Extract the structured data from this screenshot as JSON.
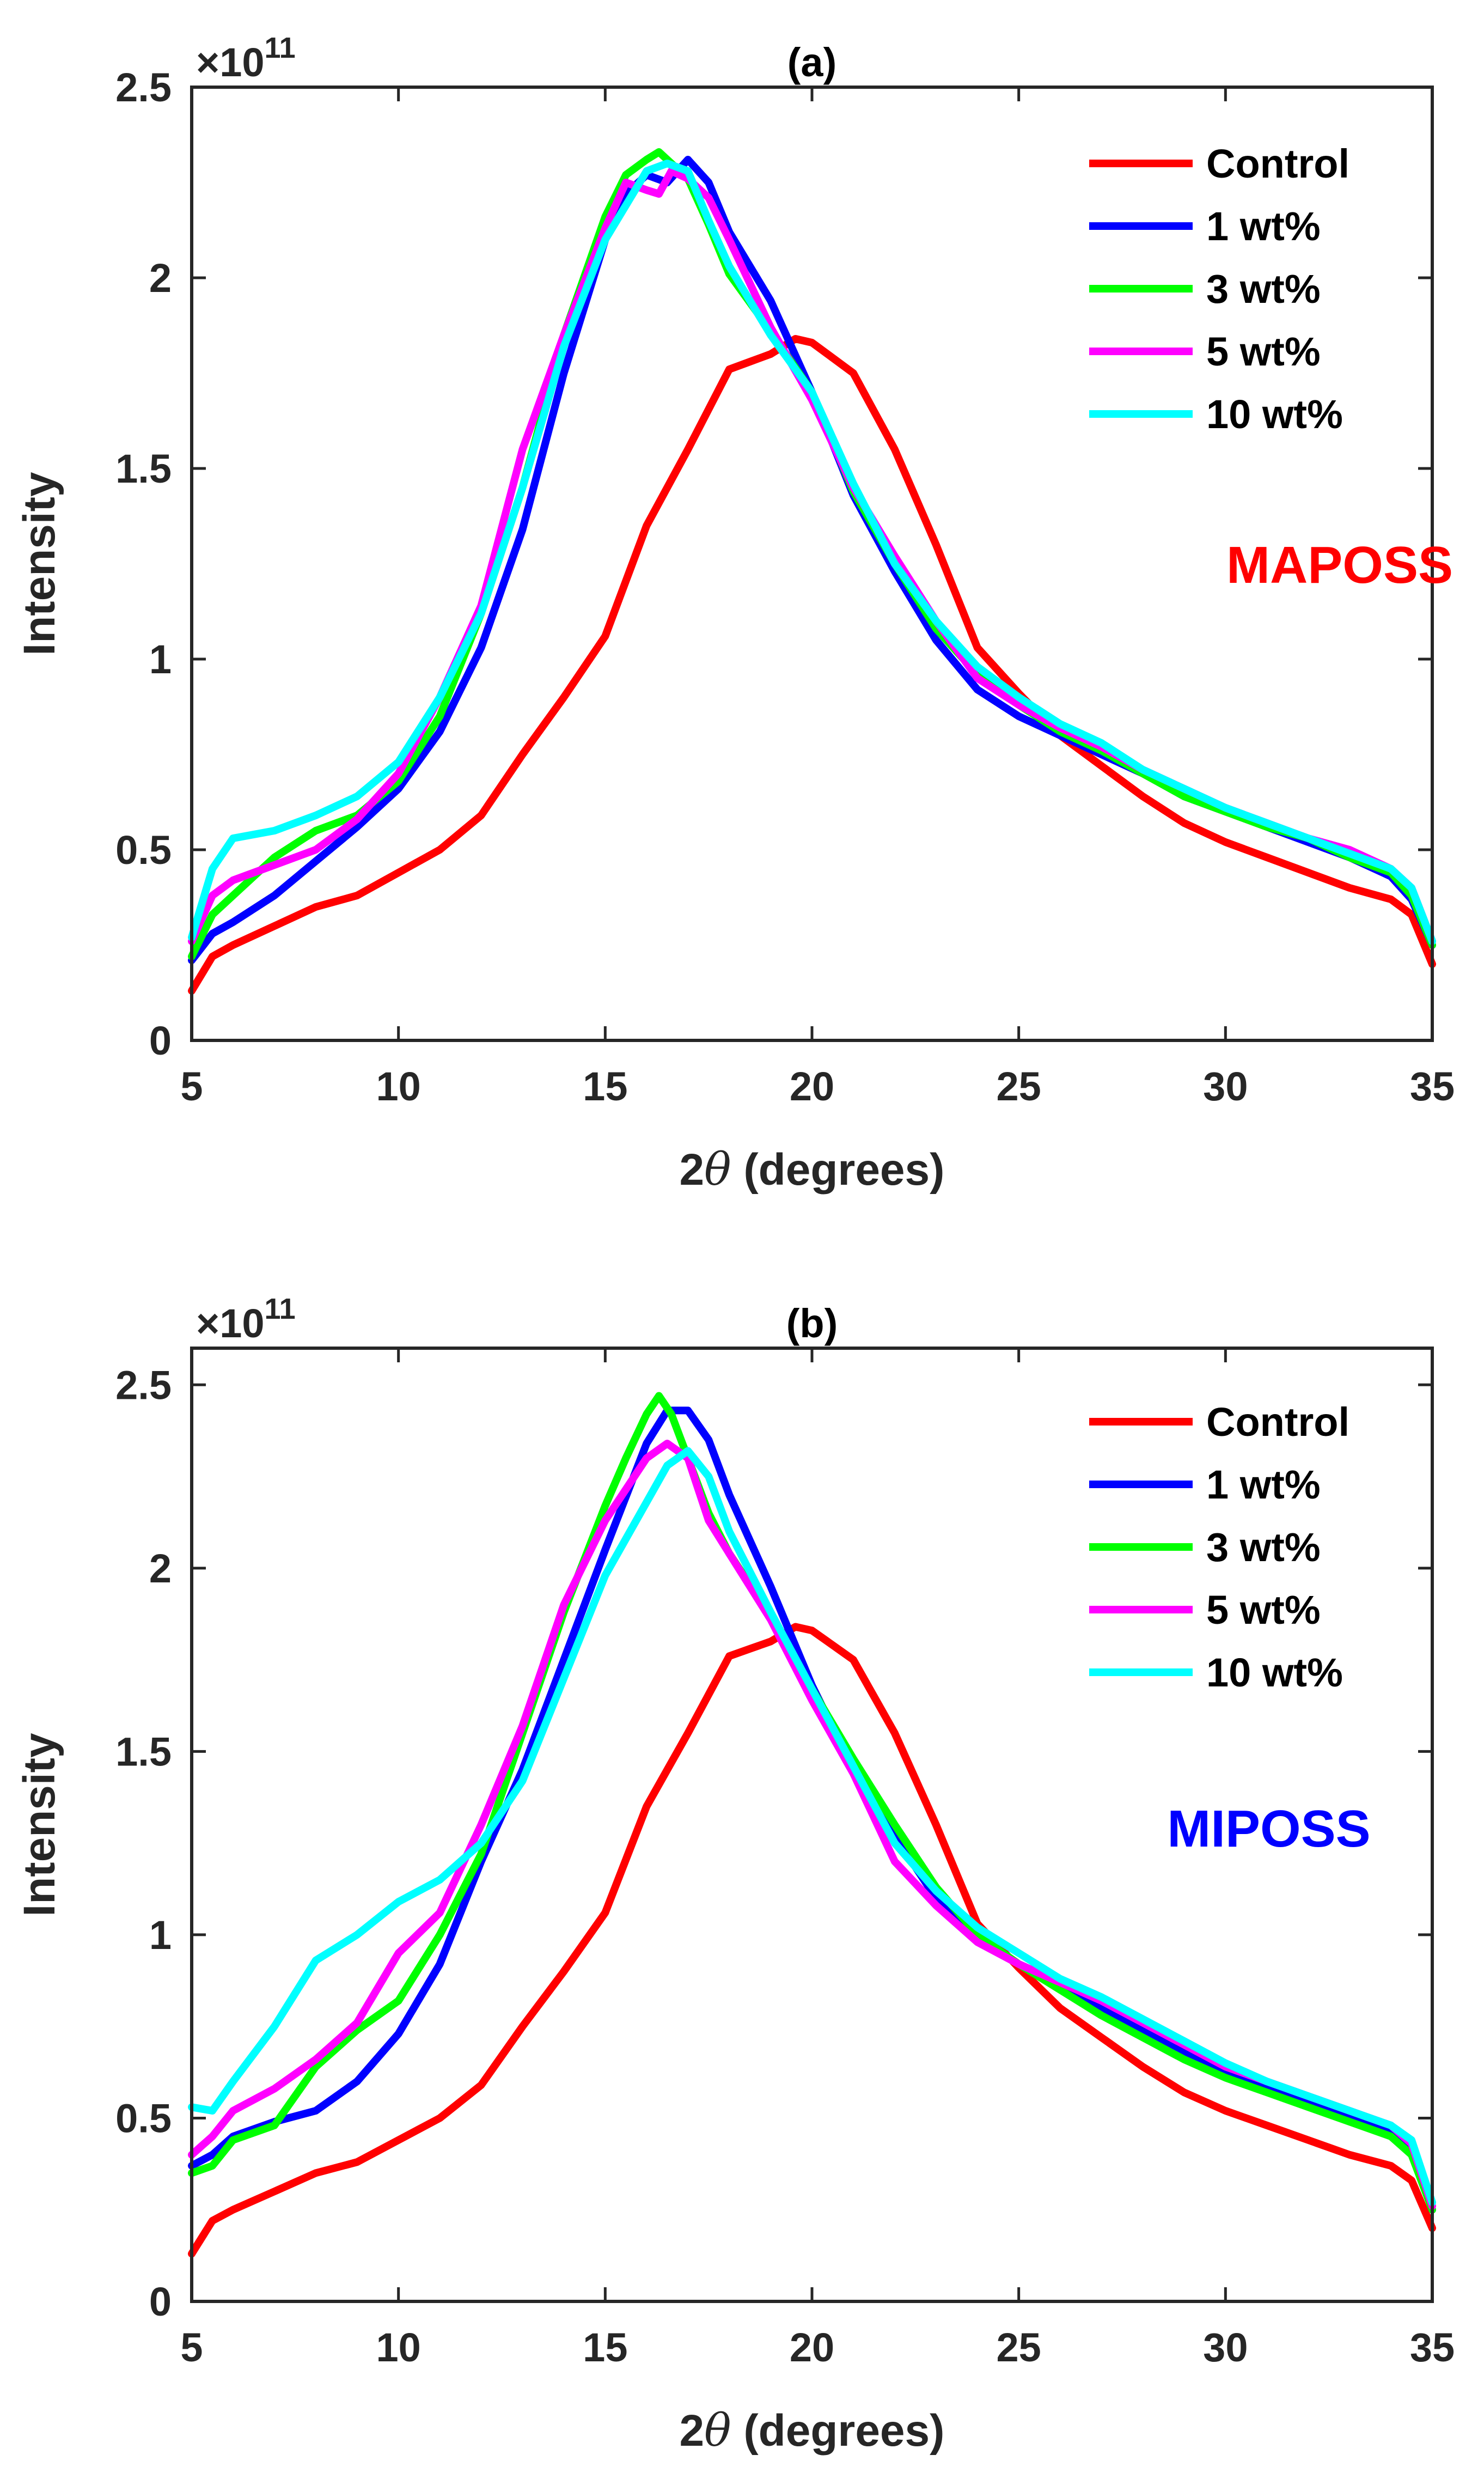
{
  "chart_data": [
    {
      "type": "line",
      "title": "(a)",
      "xlabel_prefix": "2",
      "xlabel_symbol": "θ",
      "xlabel_suffix": " (degrees)",
      "ylabel": "Intensity",
      "exponent_base": "×10",
      "exponent_power": "11",
      "annotation": "MAPOSS",
      "annotation_color": "#ff0000",
      "xlim": [
        5,
        35
      ],
      "ylim": [
        0,
        2.5
      ],
      "xticks": [
        5,
        10,
        15,
        20,
        25,
        30,
        35
      ],
      "yticks": [
        0,
        0.5,
        1,
        1.5,
        2,
        2.5
      ],
      "xtick_labels": [
        "5",
        "10",
        "15",
        "20",
        "25",
        "30",
        "35"
      ],
      "ytick_labels": [
        "0",
        "0.5",
        "1",
        "1.5",
        "2",
        "2.5"
      ],
      "legend_position": "top-right",
      "series": [
        {
          "name": "Control",
          "color": "#ff0000",
          "x": [
            5,
            5.5,
            6,
            7,
            8,
            9,
            10,
            11,
            12,
            13,
            14,
            15,
            16,
            17,
            18,
            18.5,
            19,
            19.6,
            20,
            20.5,
            21,
            22,
            23,
            24,
            25,
            26,
            27,
            28,
            29,
            30,
            31,
            32,
            33,
            34,
            34.5,
            35
          ],
          "y": [
            0.13,
            0.22,
            0.25,
            0.3,
            0.35,
            0.38,
            0.44,
            0.5,
            0.59,
            0.75,
            0.9,
            1.06,
            1.35,
            1.55,
            1.76,
            1.78,
            1.8,
            1.84,
            1.83,
            1.79,
            1.75,
            1.55,
            1.3,
            1.03,
            0.91,
            0.8,
            0.72,
            0.64,
            0.57,
            0.52,
            0.48,
            0.44,
            0.4,
            0.37,
            0.33,
            0.2
          ]
        },
        {
          "name": "1 wt%",
          "color": "#0000ff",
          "x": [
            5,
            5.5,
            6,
            7,
            8,
            9,
            10,
            11,
            12,
            13,
            14,
            15,
            15.5,
            16,
            16.5,
            17,
            17.5,
            18,
            19,
            20,
            21,
            22,
            23,
            24,
            25,
            26,
            27,
            28,
            29,
            30,
            31,
            32,
            33,
            34,
            34.5,
            35
          ],
          "y": [
            0.21,
            0.28,
            0.31,
            0.38,
            0.47,
            0.56,
            0.66,
            0.81,
            1.03,
            1.34,
            1.75,
            2.1,
            2.22,
            2.27,
            2.25,
            2.31,
            2.25,
            2.12,
            1.94,
            1.7,
            1.43,
            1.23,
            1.05,
            0.92,
            0.85,
            0.8,
            0.75,
            0.7,
            0.64,
            0.6,
            0.56,
            0.52,
            0.48,
            0.43,
            0.37,
            0.25
          ]
        },
        {
          "name": "3 wt%",
          "color": "#00ff00",
          "x": [
            5,
            5.5,
            6,
            7,
            8,
            9,
            10,
            11,
            12,
            13,
            14,
            15,
            15.5,
            16,
            16.3,
            16.6,
            17,
            17.5,
            18,
            19,
            20,
            21,
            22,
            23,
            24,
            25,
            26,
            27,
            28,
            29,
            30,
            31,
            32,
            33,
            34,
            34.5,
            35
          ],
          "y": [
            0.22,
            0.33,
            0.38,
            0.48,
            0.55,
            0.59,
            0.68,
            0.85,
            1.12,
            1.45,
            1.85,
            2.16,
            2.27,
            2.31,
            2.33,
            2.3,
            2.26,
            2.14,
            2.01,
            1.86,
            1.7,
            1.44,
            1.25,
            1.08,
            0.96,
            0.88,
            0.81,
            0.76,
            0.7,
            0.64,
            0.6,
            0.56,
            0.53,
            0.48,
            0.44,
            0.38,
            0.25
          ]
        },
        {
          "name": "5 wt%",
          "color": "#ff00ff",
          "x": [
            5,
            5.5,
            6,
            7,
            8,
            9,
            10,
            11,
            12,
            13,
            14,
            15,
            15.5,
            16,
            16.3,
            16.6,
            17,
            17.5,
            18,
            19,
            20,
            21,
            22,
            23,
            24,
            25,
            26,
            27,
            28,
            29,
            30,
            31,
            32,
            33,
            34,
            34.5,
            35
          ],
          "y": [
            0.26,
            0.38,
            0.42,
            0.46,
            0.5,
            0.58,
            0.7,
            0.9,
            1.14,
            1.55,
            1.85,
            2.13,
            2.25,
            2.23,
            2.22,
            2.28,
            2.26,
            2.21,
            2.1,
            1.87,
            1.68,
            1.45,
            1.27,
            1.1,
            0.95,
            0.88,
            0.82,
            0.77,
            0.71,
            0.66,
            0.61,
            0.57,
            0.53,
            0.5,
            0.45,
            0.4,
            0.26
          ]
        },
        {
          "name": "10 wt%",
          "color": "#00ffff",
          "x": [
            5,
            5.5,
            6,
            7,
            8,
            9,
            10,
            11,
            12,
            13,
            14,
            15,
            16,
            16.5,
            17,
            17.5,
            18,
            19,
            20,
            21,
            22,
            23,
            24,
            25,
            26,
            27,
            28,
            29,
            30,
            31,
            32,
            33,
            34,
            34.5,
            35
          ],
          "y": [
            0.27,
            0.45,
            0.53,
            0.55,
            0.59,
            0.64,
            0.73,
            0.9,
            1.12,
            1.45,
            1.82,
            2.1,
            2.28,
            2.3,
            2.28,
            2.15,
            2.03,
            1.85,
            1.7,
            1.46,
            1.25,
            1.1,
            0.98,
            0.9,
            0.83,
            0.78,
            0.71,
            0.66,
            0.61,
            0.57,
            0.53,
            0.49,
            0.45,
            0.4,
            0.26
          ]
        }
      ]
    },
    {
      "type": "line",
      "title": "(b)",
      "xlabel_prefix": "2",
      "xlabel_symbol": "θ",
      "xlabel_suffix": " (degrees)",
      "ylabel": "Intensity",
      "exponent_base": "×10",
      "exponent_power": "11",
      "annotation": "MIPOSS",
      "annotation_color": "#0000ff",
      "xlim": [
        5,
        35
      ],
      "ylim": [
        0,
        2.6
      ],
      "xticks": [
        5,
        10,
        15,
        20,
        25,
        30,
        35
      ],
      "yticks": [
        0,
        0.5,
        1,
        1.5,
        2,
        2.5
      ],
      "xtick_labels": [
        "5",
        "10",
        "15",
        "20",
        "25",
        "30",
        "35"
      ],
      "ytick_labels": [
        "0",
        "0.5",
        "1",
        "1.5",
        "2",
        "2.5"
      ],
      "legend_position": "top-right",
      "series": [
        {
          "name": "Control",
          "color": "#ff0000",
          "x": [
            5,
            5.5,
            6,
            7,
            8,
            9,
            10,
            11,
            12,
            13,
            14,
            15,
            16,
            17,
            18,
            18.5,
            19,
            19.6,
            20,
            20.5,
            21,
            22,
            23,
            24,
            25,
            26,
            27,
            28,
            29,
            30,
            31,
            32,
            33,
            34,
            34.5,
            35
          ],
          "y": [
            0.13,
            0.22,
            0.25,
            0.3,
            0.35,
            0.38,
            0.44,
            0.5,
            0.59,
            0.75,
            0.9,
            1.06,
            1.35,
            1.55,
            1.76,
            1.78,
            1.8,
            1.84,
            1.83,
            1.79,
            1.75,
            1.55,
            1.3,
            1.03,
            0.91,
            0.8,
            0.72,
            0.64,
            0.57,
            0.52,
            0.48,
            0.44,
            0.4,
            0.37,
            0.33,
            0.2
          ]
        },
        {
          "name": "1 wt%",
          "color": "#0000ff",
          "x": [
            5,
            5.5,
            6,
            7,
            8,
            9,
            10,
            11,
            12,
            13,
            14,
            15,
            16,
            16.5,
            17,
            17.5,
            18,
            19,
            20,
            21,
            22,
            23,
            24,
            25,
            26,
            27,
            28,
            29,
            30,
            31,
            32,
            33,
            34,
            34.5,
            35
          ],
          "y": [
            0.37,
            0.4,
            0.45,
            0.49,
            0.52,
            0.6,
            0.73,
            0.92,
            1.2,
            1.45,
            1.75,
            2.05,
            2.34,
            2.43,
            2.43,
            2.35,
            2.2,
            1.95,
            1.68,
            1.45,
            1.27,
            1.1,
            1.0,
            0.92,
            0.87,
            0.8,
            0.74,
            0.68,
            0.62,
            0.58,
            0.54,
            0.5,
            0.46,
            0.41,
            0.25
          ]
        },
        {
          "name": "3 wt%",
          "color": "#00ff00",
          "x": [
            5,
            5.5,
            6,
            7,
            8,
            9,
            10,
            11,
            12,
            13,
            14,
            15,
            15.5,
            16,
            16.3,
            16.6,
            17,
            17.5,
            18,
            19,
            20,
            21,
            22,
            23,
            24,
            25,
            26,
            27,
            28,
            29,
            30,
            31,
            32,
            33,
            34,
            34.5,
            35
          ],
          "y": [
            0.35,
            0.37,
            0.44,
            0.48,
            0.64,
            0.74,
            0.82,
            1.0,
            1.22,
            1.55,
            1.88,
            2.17,
            2.3,
            2.42,
            2.47,
            2.42,
            2.3,
            2.15,
            2.04,
            1.87,
            1.67,
            1.48,
            1.3,
            1.13,
            1.0,
            0.92,
            0.85,
            0.78,
            0.72,
            0.66,
            0.61,
            0.57,
            0.53,
            0.49,
            0.45,
            0.4,
            0.25
          ]
        },
        {
          "name": "5 wt%",
          "color": "#ff00ff",
          "x": [
            5,
            5.5,
            6,
            7,
            8,
            9,
            10,
            11,
            12,
            13,
            14,
            15,
            16,
            16.5,
            17,
            17.5,
            18,
            19,
            20,
            21,
            22,
            23,
            24,
            25,
            26,
            27,
            28,
            29,
            30,
            31,
            32,
            33,
            34,
            34.5,
            35
          ],
          "y": [
            0.4,
            0.45,
            0.52,
            0.58,
            0.66,
            0.76,
            0.95,
            1.06,
            1.3,
            1.57,
            1.9,
            2.13,
            2.3,
            2.34,
            2.3,
            2.13,
            2.04,
            1.86,
            1.64,
            1.44,
            1.2,
            1.08,
            0.98,
            0.92,
            0.87,
            0.82,
            0.76,
            0.7,
            0.64,
            0.6,
            0.56,
            0.52,
            0.48,
            0.43,
            0.26
          ]
        },
        {
          "name": "10 wt%",
          "color": "#00ffff",
          "x": [
            5,
            5.5,
            6,
            7,
            8,
            9,
            10,
            11,
            12,
            13,
            14,
            15,
            16,
            16.5,
            17,
            17.5,
            18,
            19,
            20,
            21,
            22,
            23,
            24,
            25,
            26,
            27,
            28,
            29,
            30,
            31,
            32,
            33,
            34,
            34.5,
            35
          ],
          "y": [
            0.53,
            0.52,
            0.6,
            0.75,
            0.93,
            1.0,
            1.09,
            1.15,
            1.25,
            1.42,
            1.7,
            1.98,
            2.18,
            2.28,
            2.32,
            2.25,
            2.1,
            1.88,
            1.67,
            1.46,
            1.25,
            1.12,
            1.02,
            0.95,
            0.88,
            0.83,
            0.77,
            0.71,
            0.65,
            0.6,
            0.56,
            0.52,
            0.48,
            0.44,
            0.27
          ]
        }
      ]
    }
  ]
}
